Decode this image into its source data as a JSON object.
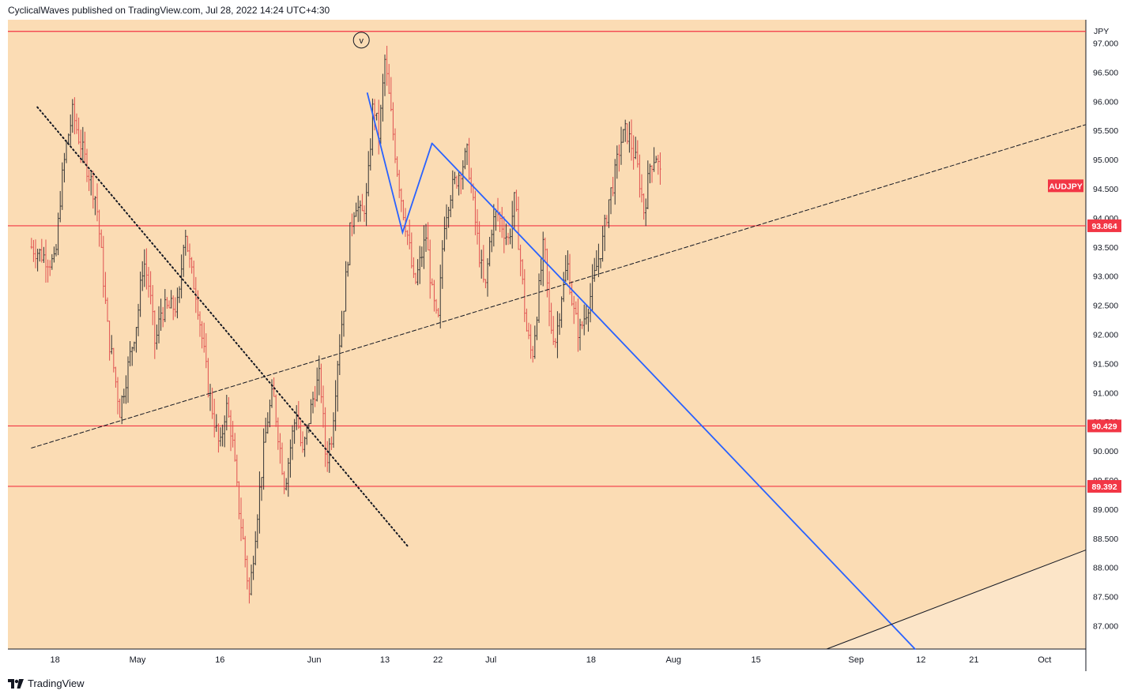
{
  "header": {
    "text": "CyclicalWaves published on TradingView.com, Jul 28, 2022 14:24 UTC+4:30"
  },
  "footer": {
    "brand": "TradingView",
    "logo_icon": "tradingview-logo-icon"
  },
  "colors": {
    "chart_bg": "#fbdcb4",
    "lower_bg": "#fce5c8",
    "axis_bg": "#ffffff",
    "red": "#f23645",
    "blue": "#2962ff",
    "candle": "#333333",
    "candle_down": "#e05050"
  },
  "chart_data": {
    "type": "candlestick",
    "symbol": "AUDJPY",
    "currency": "JPY",
    "ylim": [
      86.6,
      97.4
    ],
    "x_ticks": [
      {
        "label": "18",
        "date": "2022-04-18"
      },
      {
        "label": "May",
        "date": "2022-05-02"
      },
      {
        "label": "16",
        "date": "2022-05-16"
      },
      {
        "label": "Jun",
        "date": "2022-06-01"
      },
      {
        "label": "13",
        "date": "2022-06-13"
      },
      {
        "label": "22",
        "date": "2022-06-22"
      },
      {
        "label": "Jul",
        "date": "2022-07-01"
      },
      {
        "label": "18",
        "date": "2022-07-18"
      },
      {
        "label": "Aug",
        "date": "2022-08-01"
      },
      {
        "label": "15",
        "date": "2022-08-15"
      },
      {
        "label": "Sep",
        "date": "2022-09-01"
      },
      {
        "label": "12",
        "date": "2022-09-12"
      },
      {
        "label": "21",
        "date": "2022-09-21"
      },
      {
        "label": "Oct",
        "date": "2022-10-03"
      }
    ],
    "y_ticks": [
      "97.000",
      "96.500",
      "96.000",
      "95.500",
      "95.000",
      "94.500",
      "94.000",
      "93.500",
      "93.000",
      "92.500",
      "92.000",
      "91.500",
      "91.000",
      "90.500",
      "90.000",
      "89.500",
      "89.000",
      "88.500",
      "88.000",
      "87.500",
      "87.000"
    ],
    "horizontal_levels": [
      {
        "value": 97.2,
        "label": ""
      },
      {
        "value": 93.864,
        "label": "93.864"
      },
      {
        "value": 90.429,
        "label": "90.429"
      },
      {
        "value": 89.392,
        "label": "89.392"
      }
    ],
    "symbol_badge_value": 94.55,
    "wave_label": "v",
    "wave_label_point": {
      "date": "2022-06-09",
      "value": 97.05
    },
    "price_path": [
      [
        "2022-04-14",
        93.5
      ],
      [
        "2022-04-18",
        93.2
      ],
      [
        "2022-04-19",
        94.5
      ],
      [
        "2022-04-20",
        95.3
      ],
      [
        "2022-04-21",
        95.8
      ],
      [
        "2022-04-22",
        95.4
      ],
      [
        "2022-04-25",
        94.3
      ],
      [
        "2022-04-26",
        93.2
      ],
      [
        "2022-04-27",
        92.0
      ],
      [
        "2022-04-28",
        91.4
      ],
      [
        "2022-04-29",
        90.7
      ],
      [
        "2022-05-02",
        92.3
      ],
      [
        "2022-05-03",
        93.3
      ],
      [
        "2022-05-04",
        92.8
      ],
      [
        "2022-05-05",
        91.8
      ],
      [
        "2022-05-06",
        92.4
      ],
      [
        "2022-05-09",
        92.5
      ],
      [
        "2022-05-10",
        93.9
      ],
      [
        "2022-05-11",
        93.1
      ],
      [
        "2022-05-12",
        92.7
      ],
      [
        "2022-05-13",
        91.9
      ],
      [
        "2022-05-14",
        91.1
      ],
      [
        "2022-05-16",
        90.0
      ],
      [
        "2022-05-17",
        90.8
      ],
      [
        "2022-05-18",
        90.3
      ],
      [
        "2022-05-19",
        89.2
      ],
      [
        "2022-05-20",
        88.4
      ],
      [
        "2022-05-21",
        87.5
      ],
      [
        "2022-05-22",
        88.6
      ],
      [
        "2022-05-23",
        89.6
      ],
      [
        "2022-05-24",
        90.5
      ],
      [
        "2022-05-25",
        91.0
      ],
      [
        "2022-05-26",
        90.2
      ],
      [
        "2022-05-27",
        89.4
      ],
      [
        "2022-05-28",
        90.1
      ],
      [
        "2022-05-29",
        90.7
      ],
      [
        "2022-05-30",
        89.9
      ],
      [
        "2022-05-31",
        90.5
      ],
      [
        "2022-06-01",
        91.0
      ],
      [
        "2022-06-02",
        91.3
      ],
      [
        "2022-06-03",
        89.8
      ],
      [
        "2022-06-04",
        90.3
      ],
      [
        "2022-06-05",
        91.6
      ],
      [
        "2022-06-06",
        92.5
      ],
      [
        "2022-06-07",
        93.7
      ],
      [
        "2022-06-08",
        94.3
      ],
      [
        "2022-06-09",
        94.0
      ],
      [
        "2022-06-10",
        94.4
      ],
      [
        "2022-06-11",
        96.0
      ],
      [
        "2022-06-12",
        95.4
      ],
      [
        "2022-06-13",
        96.7
      ],
      [
        "2022-06-14",
        95.8
      ],
      [
        "2022-06-15",
        94.9
      ],
      [
        "2022-06-16",
        94.2
      ],
      [
        "2022-06-17",
        93.6
      ],
      [
        "2022-06-18",
        92.8
      ],
      [
        "2022-06-20",
        93.7
      ],
      [
        "2022-06-21",
        92.7
      ],
      [
        "2022-06-22",
        92.1
      ],
      [
        "2022-06-23",
        93.9
      ],
      [
        "2022-06-24",
        94.4
      ],
      [
        "2022-06-27",
        95.1
      ],
      [
        "2022-06-28",
        94.2
      ],
      [
        "2022-06-29",
        93.4
      ],
      [
        "2022-06-30",
        92.7
      ],
      [
        "2022-07-01",
        93.8
      ],
      [
        "2022-07-02",
        94.1
      ],
      [
        "2022-07-04",
        93.6
      ],
      [
        "2022-07-05",
        94.3
      ],
      [
        "2022-07-06",
        93.3
      ],
      [
        "2022-07-07",
        92.1
      ],
      [
        "2022-07-08",
        91.6
      ],
      [
        "2022-07-09",
        92.6
      ],
      [
        "2022-07-10",
        93.6
      ],
      [
        "2022-07-11",
        92.2
      ],
      [
        "2022-07-12",
        91.9
      ],
      [
        "2022-07-13",
        92.7
      ],
      [
        "2022-07-14",
        93.2
      ],
      [
        "2022-07-15",
        92.4
      ],
      [
        "2022-07-16",
        92.0
      ],
      [
        "2022-07-18",
        92.7
      ],
      [
        "2022-07-19",
        93.2
      ],
      [
        "2022-07-20",
        93.6
      ],
      [
        "2022-07-21",
        94.3
      ],
      [
        "2022-07-22",
        94.7
      ],
      [
        "2022-07-23",
        95.3
      ],
      [
        "2022-07-24",
        95.5
      ],
      [
        "2022-07-25",
        95.2
      ],
      [
        "2022-07-26",
        94.8
      ],
      [
        "2022-07-27",
        94.1
      ],
      [
        "2022-07-28",
        94.9
      ],
      [
        "2022-07-29",
        95.1
      ],
      [
        "2022-07-30",
        94.6
      ]
    ],
    "trendlines": [
      {
        "style": "dotted",
        "color": "#131722",
        "from": [
          "2022-04-15",
          95.9
        ],
        "to": [
          "2022-06-17",
          88.35
        ]
      },
      {
        "style": "dashed",
        "color": "#131722",
        "from": [
          "2022-04-14",
          90.05
        ],
        "to": [
          "2022-10-10",
          95.6
        ]
      },
      {
        "style": "solid",
        "color": "#2962ff",
        "from": [
          "2022-06-21",
          95.28
        ],
        "to": [
          "2022-09-11",
          86.6
        ]
      },
      {
        "style": "solid",
        "color": "#131722",
        "from": [
          "2022-08-27",
          86.6
        ],
        "to": [
          "2022-10-10",
          88.3
        ]
      }
    ],
    "zigzag": [
      [
        "2022-06-10",
        96.15
      ],
      [
        "2022-06-16",
        93.75
      ],
      [
        "2022-06-21",
        95.28
      ]
    ]
  }
}
